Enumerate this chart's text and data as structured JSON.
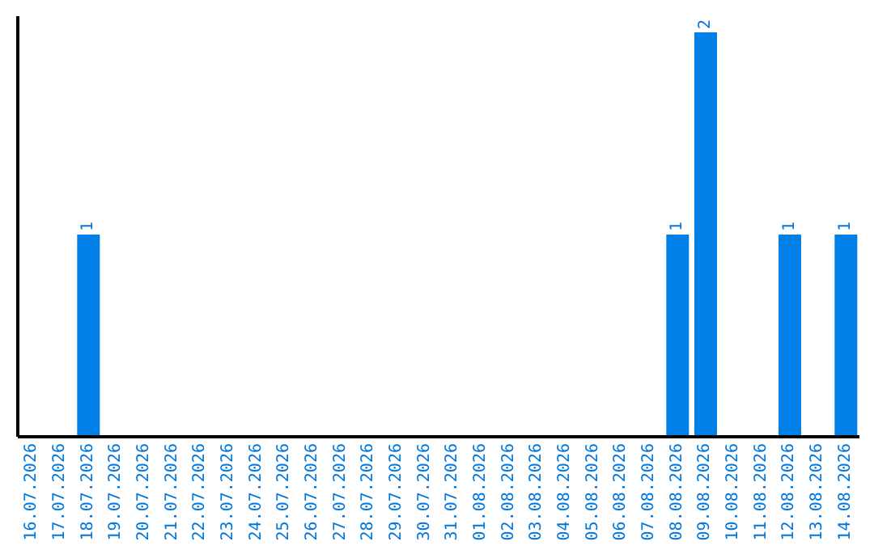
{
  "chart_data": {
    "type": "bar",
    "categories": [
      "16.07.2026",
      "17.07.2026",
      "18.07.2026",
      "19.07.2026",
      "20.07.2026",
      "21.07.2026",
      "22.07.2026",
      "23.07.2026",
      "24.07.2026",
      "25.07.2026",
      "26.07.2026",
      "27.07.2026",
      "28.07.2026",
      "29.07.2026",
      "30.07.2026",
      "31.07.2026",
      "01.08.2026",
      "02.08.2026",
      "03.08.2026",
      "04.08.2026",
      "05.08.2026",
      "06.08.2026",
      "07.08.2026",
      "08.08.2026",
      "09.08.2026",
      "10.08.2026",
      "11.08.2026",
      "12.08.2026",
      "13.08.2026",
      "14.08.2026"
    ],
    "values": [
      null,
      null,
      1,
      null,
      null,
      null,
      null,
      null,
      null,
      null,
      null,
      null,
      null,
      null,
      null,
      null,
      null,
      null,
      null,
      null,
      null,
      null,
      null,
      1,
      2,
      null,
      null,
      1,
      null,
      1
    ],
    "data_labels": true,
    "color": "#0080e6",
    "grid": false,
    "legend": false
  }
}
